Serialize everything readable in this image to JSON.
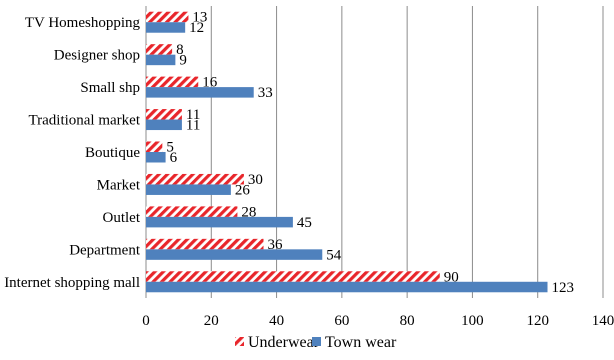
{
  "chart_data": {
    "type": "bar",
    "orientation": "horizontal",
    "categories": [
      "TV Homeshopping",
      "Designer shop",
      "Small shp",
      "Traditional market",
      "Boutique",
      "Market",
      "Outlet",
      "Department",
      "Internet shopping mall"
    ],
    "series": [
      {
        "name": "Underwear",
        "values": [
          13,
          8,
          16,
          11,
          5,
          30,
          28,
          36,
          90
        ],
        "color": "#e8262b",
        "pattern": "diagonal-hatch"
      },
      {
        "name": "Town wear",
        "values": [
          12,
          9,
          33,
          11,
          6,
          26,
          45,
          54,
          123
        ],
        "color": "#4f81bd",
        "pattern": "solid"
      }
    ],
    "xlim": [
      0,
      140
    ],
    "xticks": [
      "0",
      "20",
      "40",
      "60",
      "80",
      "100",
      "120",
      "140"
    ],
    "grid": "vertical",
    "legend": "bottom",
    "data_labels": true
  }
}
